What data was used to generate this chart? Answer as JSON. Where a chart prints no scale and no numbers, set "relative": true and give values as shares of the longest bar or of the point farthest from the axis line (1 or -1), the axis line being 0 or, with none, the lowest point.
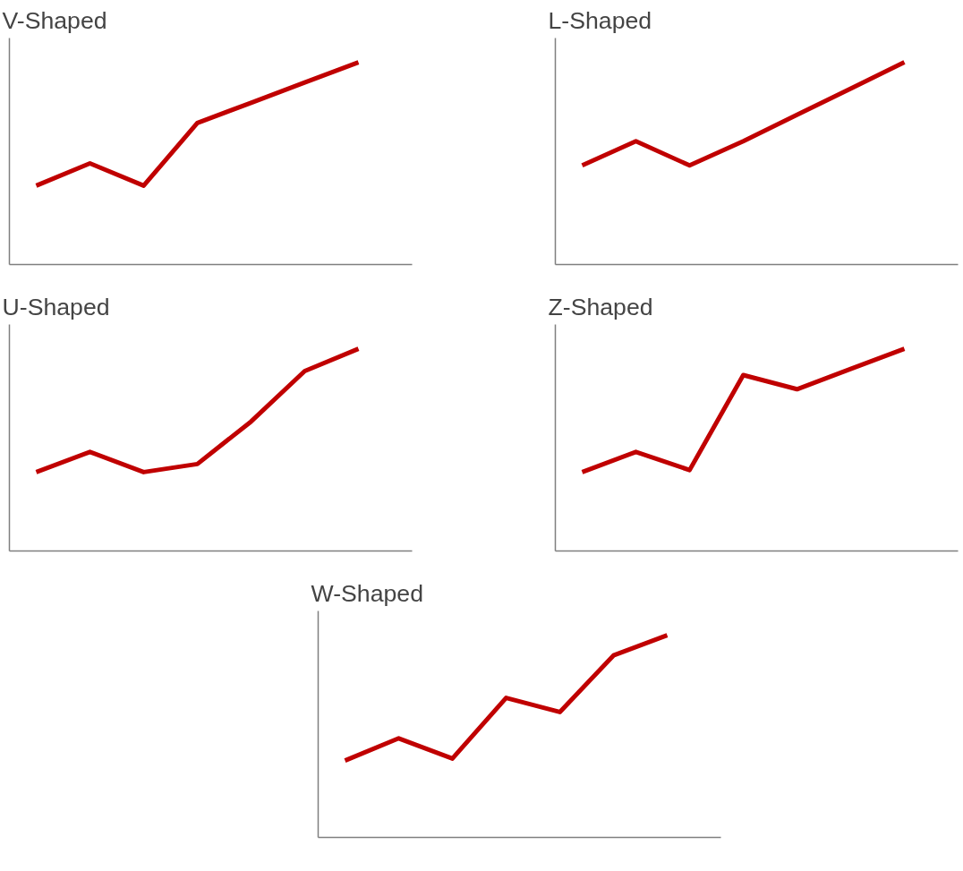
{
  "chart_data": [
    {
      "type": "line",
      "title": "V-Shaped",
      "relative": true,
      "color": "#c00000",
      "categories": [
        null,
        null,
        null,
        null,
        null,
        null,
        null
      ],
      "values": [
        0.39,
        0.5,
        0.39,
        0.7,
        0.8,
        0.9,
        1.0
      ]
    },
    {
      "type": "line",
      "title": "L-Shaped",
      "relative": true,
      "color": "#c00000",
      "categories": [
        null,
        null,
        null,
        null,
        null,
        null,
        null
      ],
      "values": [
        0.49,
        0.61,
        0.49,
        0.61,
        0.74,
        0.87,
        1.0
      ]
    },
    {
      "type": "line",
      "title": "U-Shaped",
      "relative": true,
      "color": "#c00000",
      "categories": [
        null,
        null,
        null,
        null,
        null,
        null,
        null
      ],
      "values": [
        0.39,
        0.49,
        0.39,
        0.43,
        0.64,
        0.89,
        1.0
      ]
    },
    {
      "type": "line",
      "title": "Z-Shaped",
      "relative": true,
      "color": "#c00000",
      "categories": [
        null,
        null,
        null,
        null,
        null,
        null,
        null
      ],
      "values": [
        0.39,
        0.49,
        0.4,
        0.87,
        0.8,
        0.9,
        1.0
      ]
    },
    {
      "type": "line",
      "title": "W-Shaped",
      "relative": true,
      "color": "#c00000",
      "categories": [
        null,
        null,
        null,
        null,
        null,
        null,
        null
      ],
      "values": [
        0.38,
        0.49,
        0.39,
        0.69,
        0.62,
        0.9,
        1.0
      ]
    }
  ]
}
